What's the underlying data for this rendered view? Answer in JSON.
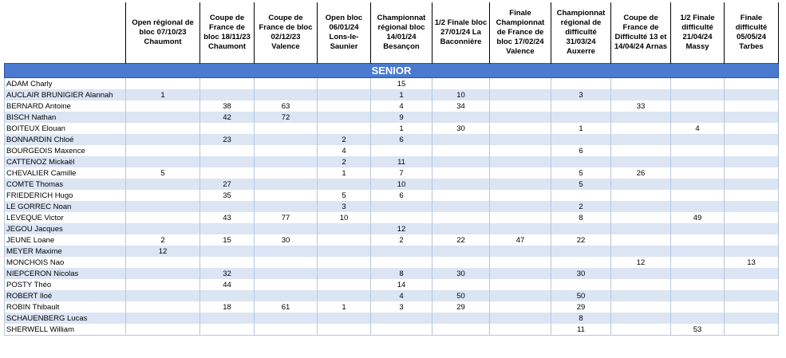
{
  "table": {
    "headers": [
      "Open régional de bloc 07/10/23 Chaumont",
      "Coupe de France de bloc 18/11/23 Chaumont",
      "Coupe de France de bloc 02/12/23 Valence",
      "Open bloc 06/01/24 Lons-le-Saunier",
      "Championnat régional bloc 14/01/24 Besançon",
      "1/2 Finale bloc 27/01/24 La Baconnière",
      "Finale Championnat de France de bloc 17/02/24 Valence",
      "Championnat régional de difficulté 31/03/24 Auxerre",
      "Coupe de France de Difficulté 13 et 14/04/24 Arnas",
      "1/2 Finale difficulté 21/04/24 Massy",
      "Finale difficulté 05/05/24 Tarbes"
    ],
    "section": "SENIOR",
    "rows": [
      {
        "name": "ADAM Charly",
        "cells": [
          null,
          null,
          null,
          null,
          15,
          null,
          null,
          null,
          null,
          null,
          null
        ]
      },
      {
        "name": "AUCLAIR BRUNIGIER Alannah",
        "cells": [
          1,
          null,
          null,
          null,
          1,
          10,
          null,
          3,
          null,
          null,
          null
        ]
      },
      {
        "name": "BERNARD Antoine",
        "cells": [
          null,
          38,
          63,
          null,
          4,
          34,
          null,
          null,
          33,
          null,
          null
        ]
      },
      {
        "name": "BISCH Nathan",
        "cells": [
          null,
          42,
          72,
          null,
          9,
          null,
          null,
          null,
          null,
          null,
          null
        ]
      },
      {
        "name": "BOITEUX Elouan",
        "cells": [
          null,
          null,
          null,
          null,
          1,
          30,
          null,
          1,
          null,
          4,
          null
        ]
      },
      {
        "name": "BONNARDIN Chloé",
        "cells": [
          null,
          23,
          null,
          2,
          6,
          null,
          null,
          null,
          null,
          null,
          null
        ]
      },
      {
        "name": "BOURGEOIS Maxence",
        "cells": [
          null,
          null,
          null,
          4,
          null,
          null,
          null,
          6,
          null,
          null,
          null
        ]
      },
      {
        "name": "CATTENOZ Mickaël",
        "cells": [
          null,
          null,
          null,
          2,
          11,
          null,
          null,
          null,
          null,
          null,
          null
        ]
      },
      {
        "name": "CHEVALIER Camille",
        "cells": [
          5,
          null,
          null,
          1,
          7,
          null,
          null,
          5,
          26,
          null,
          null
        ]
      },
      {
        "name": "COMTE Thomas",
        "cells": [
          null,
          27,
          null,
          null,
          10,
          null,
          null,
          5,
          null,
          null,
          null
        ]
      },
      {
        "name": "FRIEDERICH Hugo",
        "cells": [
          null,
          35,
          null,
          5,
          6,
          null,
          null,
          null,
          null,
          null,
          null
        ]
      },
      {
        "name": "LE GORREC Noan",
        "cells": [
          null,
          null,
          null,
          3,
          null,
          null,
          null,
          2,
          null,
          null,
          null
        ]
      },
      {
        "name": "LEVEQUE Victor",
        "cells": [
          null,
          43,
          77,
          10,
          null,
          null,
          null,
          8,
          null,
          49,
          null
        ]
      },
      {
        "name": "JEGOU Jacques",
        "cells": [
          null,
          null,
          null,
          null,
          12,
          null,
          null,
          null,
          null,
          null,
          null
        ]
      },
      {
        "name": "JEUNE Loane",
        "cells": [
          2,
          15,
          30,
          null,
          2,
          22,
          47,
          22,
          null,
          null,
          null
        ]
      },
      {
        "name": "MEYER Maxime",
        "cells": [
          12,
          null,
          null,
          null,
          null,
          null,
          null,
          null,
          null,
          null,
          null
        ]
      },
      {
        "name": "MONCHOIS Nao",
        "cells": [
          null,
          null,
          null,
          null,
          null,
          null,
          null,
          null,
          12,
          null,
          13
        ]
      },
      {
        "name": "NIEPCERON Nicolas",
        "cells": [
          null,
          32,
          null,
          null,
          8,
          30,
          null,
          30,
          null,
          null,
          null
        ]
      },
      {
        "name": "POSTY Théo",
        "cells": [
          null,
          44,
          null,
          null,
          14,
          null,
          null,
          null,
          null,
          null,
          null
        ]
      },
      {
        "name": "ROBERT Iloé",
        "cells": [
          null,
          null,
          null,
          null,
          4,
          50,
          null,
          50,
          null,
          null,
          null
        ]
      },
      {
        "name": "ROBIN Thibault",
        "cells": [
          null,
          18,
          61,
          1,
          3,
          29,
          null,
          29,
          null,
          null,
          null
        ]
      },
      {
        "name": "SCHAUENBERG Lucas",
        "cells": [
          null,
          null,
          null,
          null,
          null,
          null,
          null,
          8,
          null,
          null,
          null
        ]
      },
      {
        "name": "SHERWELL William",
        "cells": [
          null,
          null,
          null,
          null,
          null,
          null,
          null,
          11,
          null,
          53,
          null
        ]
      }
    ]
  }
}
